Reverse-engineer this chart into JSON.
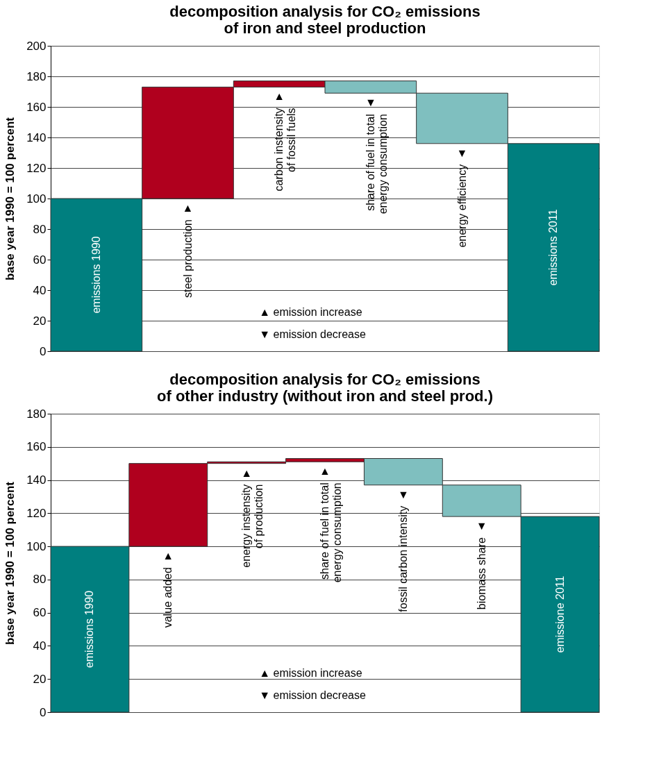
{
  "chart_data": [
    {
      "type": "bar",
      "title": "decomposition analysis for CO₂ emissions\nof iron and steel production",
      "ylabel": "base year 1990 = 100 percent",
      "categories": [
        "emissions 1990",
        "steel production",
        "carbon instensity\nof fossil fuels",
        "share of fuel in total\nenergy consumption",
        "energy efficiency",
        "emissions 2011"
      ],
      "values": [
        100,
        73,
        4,
        -8,
        -33,
        136
      ],
      "base": [
        0,
        100,
        173,
        177,
        169,
        0
      ],
      "colors": [
        "#007f7f",
        "#b0001e",
        "#b0001e",
        "#7fbfbf",
        "#7fbfbf",
        "#007f7f"
      ],
      "value_labels": [
        null,
        "▲",
        "▲",
        "▼",
        "▼",
        null
      ],
      "annotations": [
        "▲ emission increase",
        "▼ emission decrease"
      ],
      "ylim": [
        0,
        200
      ],
      "yticks": [
        0,
        20,
        40,
        60,
        80,
        100,
        120,
        140,
        160,
        180,
        200
      ],
      "grid": "y",
      "tick_labels": "y"
    },
    {
      "type": "bar",
      "title": "decomposition analysis for CO₂ emissions\nof other industry (without iron and steel prod.)",
      "ylabel": "base year 1990 = 100 percent",
      "categories": [
        "emissions 1990",
        "value added",
        "energy instensity\nof production",
        "share of fuel in total\nenergy consumption",
        "fossil carbon intensity",
        "biomass share",
        "emissione 2011"
      ],
      "values": [
        100,
        50,
        1,
        2,
        -16,
        -19,
        118
      ],
      "base": [
        0,
        100,
        150,
        151,
        153,
        137,
        0
      ],
      "colors": [
        "#007f7f",
        "#b0001e",
        "#b0001e",
        "#b0001e",
        "#7fbfbf",
        "#7fbfbf",
        "#007f7f"
      ],
      "value_labels": [
        null,
        "▲",
        "▲",
        "▲",
        "▼",
        "▼",
        null
      ],
      "annotations": [
        "▲ emission increase",
        "▼ emission decrease"
      ],
      "ylim": [
        0,
        180
      ],
      "yticks": [
        0,
        20,
        40,
        60,
        80,
        100,
        120,
        140,
        160,
        180
      ],
      "grid": "y",
      "tick_labels": "y"
    }
  ]
}
